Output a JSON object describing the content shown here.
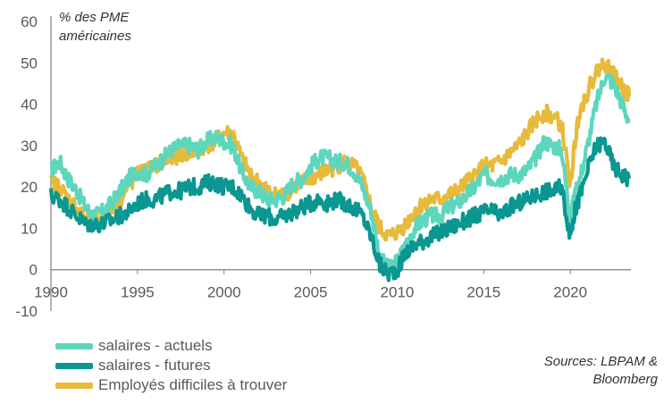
{
  "chart_data": {
    "type": "line",
    "ylabel_line1": "% des PME",
    "ylabel_line2": "américaines",
    "source_line1": "Sources: LBPAM &",
    "source_line2": "Bloomberg",
    "xlim": [
      1990,
      2023.5
    ],
    "ylim": [
      -10,
      60
    ],
    "xticks": [
      1990,
      1995,
      2000,
      2005,
      2010,
      2015,
      2020
    ],
    "yticks": [
      -10,
      0,
      10,
      20,
      30,
      40,
      50,
      60
    ],
    "series": [
      {
        "name": "salaires - actuels",
        "color": "#5ed6bc",
        "x": [
          1990,
          1990.5,
          1991,
          1991.5,
          1992,
          1992.5,
          1993,
          1993.5,
          1994,
          1994.5,
          1995,
          1995.5,
          1996,
          1996.5,
          1997,
          1997.5,
          1998,
          1998.5,
          1999,
          1999.5,
          2000,
          2000.5,
          2001,
          2001.5,
          2002,
          2002.5,
          2003,
          2003.5,
          2004,
          2004.5,
          2005,
          2005.5,
          2006,
          2006.5,
          2007,
          2007.5,
          2008,
          2008.5,
          2009,
          2009.5,
          2010,
          2010.5,
          2011,
          2011.5,
          2012,
          2012.5,
          2013,
          2013.5,
          2014,
          2014.5,
          2015,
          2015.5,
          2016,
          2016.5,
          2017,
          2017.5,
          2018,
          2018.5,
          2019,
          2019.5,
          2020,
          2020.25,
          2020.5,
          2021,
          2021.5,
          2022,
          2022.5,
          2023,
          2023.4
        ],
        "y": [
          24,
          26,
          22,
          19,
          15,
          13,
          14,
          16,
          19,
          22,
          24,
          23,
          25,
          27,
          29,
          30,
          30,
          29,
          31,
          32,
          31,
          30,
          24,
          20,
          19,
          17,
          17,
          18,
          21,
          22,
          25,
          27,
          27,
          26,
          26,
          24,
          20,
          14,
          3,
          0,
          2,
          6,
          10,
          12,
          13,
          13,
          15,
          16,
          18,
          20,
          23,
          22,
          22,
          23,
          23,
          24,
          27,
          31,
          30,
          29,
          12,
          18,
          21,
          30,
          40,
          47,
          45,
          40,
          36
        ]
      },
      {
        "name": "salaires - futures",
        "color": "#0a9691",
        "x": [
          1990,
          1990.5,
          1991,
          1991.5,
          1992,
          1992.5,
          1993,
          1993.5,
          1994,
          1994.5,
          1995,
          1995.5,
          1996,
          1996.5,
          1997,
          1997.5,
          1998,
          1998.5,
          1999,
          1999.5,
          2000,
          2000.5,
          2001,
          2001.5,
          2002,
          2002.5,
          2003,
          2003.5,
          2004,
          2004.5,
          2005,
          2005.5,
          2006,
          2006.5,
          2007,
          2007.5,
          2008,
          2008.5,
          2009,
          2009.5,
          2010,
          2010.5,
          2011,
          2011.5,
          2012,
          2012.5,
          2013,
          2013.5,
          2014,
          2014.5,
          2015,
          2015.5,
          2016,
          2016.5,
          2017,
          2017.5,
          2018,
          2018.5,
          2019,
          2019.5,
          2020,
          2020.25,
          2020.5,
          2021,
          2021.5,
          2022,
          2022.5,
          2023,
          2023.4
        ],
        "y": [
          18,
          17,
          15,
          13,
          11,
          11,
          11,
          12,
          13,
          14,
          16,
          17,
          17,
          18,
          19,
          19,
          20,
          20,
          21,
          21,
          20,
          20,
          18,
          15,
          13,
          13,
          12,
          13,
          14,
          15,
          16,
          17,
          16,
          17,
          16,
          15,
          13,
          8,
          1,
          -1,
          0,
          4,
          6,
          7,
          8,
          9,
          10,
          11,
          12,
          13,
          14,
          14,
          13,
          15,
          16,
          17,
          18,
          19,
          19,
          20,
          8,
          14,
          17,
          24,
          30,
          31,
          25,
          23,
          22
        ]
      },
      {
        "name": "Employés difficiles à trouver",
        "color": "#e8ba3a",
        "x": [
          1990,
          1990.5,
          1991,
          1991.5,
          1992,
          1992.5,
          1993,
          1993.5,
          1994,
          1994.5,
          1995,
          1995.5,
          1996,
          1996.5,
          1997,
          1997.5,
          1998,
          1998.5,
          1999,
          1999.5,
          2000,
          2000.5,
          2001,
          2001.5,
          2002,
          2002.5,
          2003,
          2003.5,
          2004,
          2004.5,
          2005,
          2005.5,
          2006,
          2006.5,
          2007,
          2007.5,
          2008,
          2008.5,
          2009,
          2009.5,
          2010,
          2010.5,
          2011,
          2011.5,
          2012,
          2012.5,
          2013,
          2013.5,
          2014,
          2014.5,
          2015,
          2015.5,
          2016,
          2016.5,
          2017,
          2017.5,
          2018,
          2018.5,
          2019,
          2019.5,
          2020,
          2020.25,
          2020.5,
          2021,
          2021.5,
          2022,
          2022.5,
          2023,
          2023.4
        ],
        "y": [
          21,
          20,
          17,
          15,
          12,
          12,
          13,
          15,
          17,
          20,
          23,
          24,
          25,
          26,
          27,
          28,
          28,
          29,
          30,
          31,
          33,
          33,
          27,
          23,
          21,
          19,
          18,
          18,
          20,
          21,
          22,
          23,
          24,
          25,
          26,
          25,
          22,
          15,
          10,
          8,
          9,
          11,
          14,
          16,
          17,
          17,
          18,
          19,
          21,
          23,
          25,
          25,
          26,
          28,
          30,
          33,
          36,
          38,
          37,
          35,
          20,
          30,
          38,
          43,
          48,
          50,
          47,
          44,
          42
        ]
      }
    ]
  }
}
